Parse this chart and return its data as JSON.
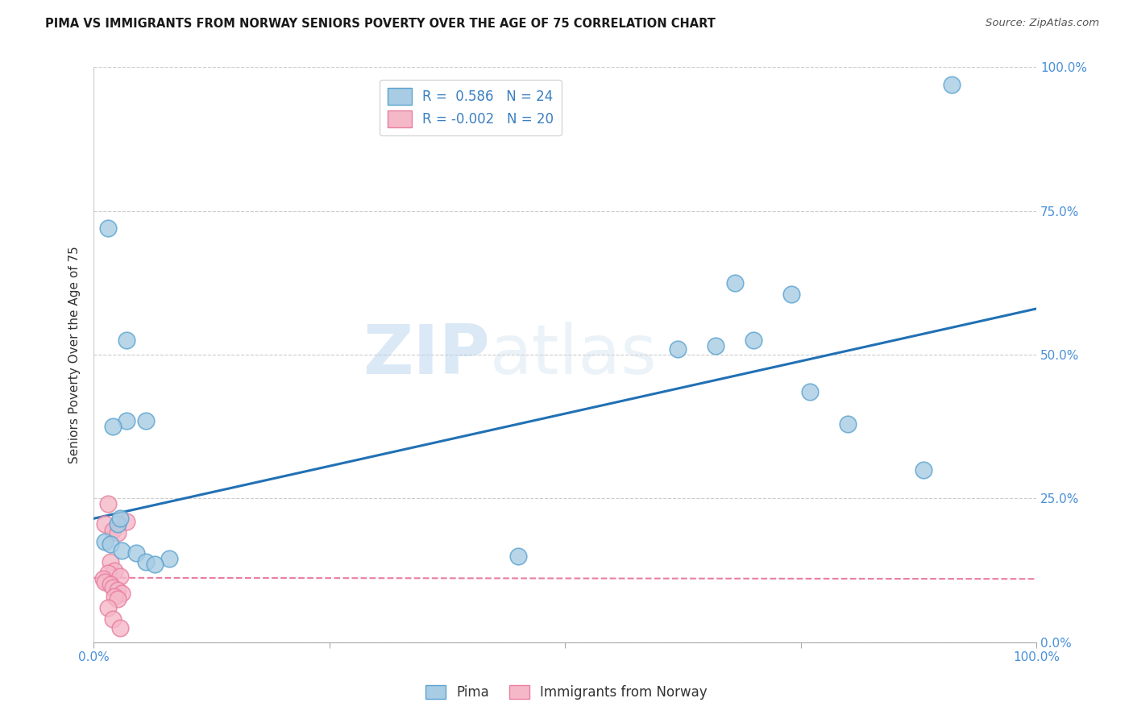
{
  "title": "PIMA VS IMMIGRANTS FROM NORWAY SENIORS POVERTY OVER THE AGE OF 75 CORRELATION CHART",
  "source": "Source: ZipAtlas.com",
  "ylabel": "Seniors Poverty Over the Age of 75",
  "pima_label": "Pima",
  "norway_label": "Immigrants from Norway",
  "pima_color": "#a8cce4",
  "pima_edge_color": "#5ba3d0",
  "norway_color": "#f5b8c8",
  "norway_edge_color": "#e87fa0",
  "trend_blue": "#2171b5",
  "trend_pink": "#e87fa0",
  "pima_R": 0.586,
  "pima_N": 24,
  "norway_R": -0.002,
  "norway_N": 20,
  "pima_points": [
    [
      1.5,
      72.0
    ],
    [
      3.5,
      52.5
    ],
    [
      3.5,
      38.5
    ],
    [
      5.5,
      38.5
    ],
    [
      2.0,
      37.5
    ],
    [
      2.5,
      20.5
    ],
    [
      2.8,
      21.5
    ],
    [
      1.2,
      17.5
    ],
    [
      1.8,
      17.0
    ],
    [
      3.0,
      16.0
    ],
    [
      4.5,
      15.5
    ],
    [
      5.5,
      14.0
    ],
    [
      66.0,
      51.5
    ],
    [
      70.0,
      52.5
    ],
    [
      68.0,
      62.5
    ],
    [
      74.0,
      60.5
    ],
    [
      76.0,
      43.5
    ],
    [
      80.0,
      38.0
    ],
    [
      62.0,
      51.0
    ],
    [
      88.0,
      30.0
    ],
    [
      45.0,
      15.0
    ],
    [
      8.0,
      14.5
    ],
    [
      91.0,
      97.0
    ],
    [
      6.5,
      13.5
    ]
  ],
  "norway_points": [
    [
      1.5,
      24.0
    ],
    [
      3.5,
      21.0
    ],
    [
      1.2,
      20.5
    ],
    [
      2.0,
      19.5
    ],
    [
      2.5,
      19.0
    ],
    [
      1.8,
      14.0
    ],
    [
      2.2,
      12.5
    ],
    [
      1.5,
      12.0
    ],
    [
      2.8,
      11.5
    ],
    [
      1.0,
      11.0
    ],
    [
      1.2,
      10.5
    ],
    [
      1.8,
      10.0
    ],
    [
      2.0,
      9.5
    ],
    [
      2.5,
      9.0
    ],
    [
      3.0,
      8.5
    ],
    [
      2.2,
      8.0
    ],
    [
      2.5,
      7.5
    ],
    [
      1.5,
      6.0
    ],
    [
      2.0,
      4.0
    ],
    [
      2.8,
      2.5
    ]
  ],
  "xlim": [
    0,
    100
  ],
  "ylim": [
    0,
    100
  ],
  "xticks": [
    0,
    25,
    50,
    75,
    100
  ],
  "yticks": [
    0,
    25,
    50,
    75,
    100
  ],
  "xticklabels": [
    "0.0%",
    "",
    "",
    "",
    "100.0%"
  ],
  "yticklabels_right": [
    "0.0%",
    "25.0%",
    "50.0%",
    "75.0%",
    "100.0%"
  ],
  "background_color": "#ffffff",
  "grid_color": "#cccccc",
  "watermark_zip": "ZIP",
  "watermark_atlas": "atlas",
  "pima_trend_x": [
    0,
    100
  ],
  "pima_trend_y": [
    21.5,
    58.0
  ],
  "norway_trend_x": [
    0,
    100
  ],
  "norway_trend_y": [
    11.2,
    11.0
  ]
}
